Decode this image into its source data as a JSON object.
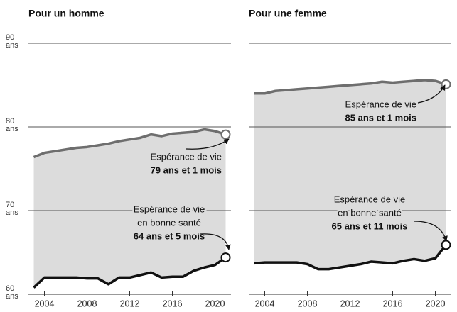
{
  "chart_data": [
    {
      "type": "line",
      "title": "Pour un homme",
      "x": [
        2003,
        2004,
        2005,
        2006,
        2007,
        2008,
        2009,
        2010,
        2011,
        2012,
        2013,
        2014,
        2015,
        2016,
        2017,
        2018,
        2019,
        2020,
        2021
      ],
      "series": [
        {
          "color": "#6e6e6e",
          "values": [
            76.4,
            76.9,
            77.1,
            77.3,
            77.5,
            77.6,
            77.8,
            78.0,
            78.3,
            78.5,
            78.7,
            79.1,
            78.9,
            79.2,
            79.3,
            79.4,
            79.7,
            79.5,
            79.1
          ]
        },
        {
          "color": "#111111",
          "values": [
            60.8,
            62.0,
            62.0,
            62.0,
            62.0,
            61.9,
            61.9,
            61.2,
            62.0,
            62.0,
            62.3,
            62.6,
            62.0,
            62.1,
            62.1,
            62.8,
            63.2,
            63.5,
            64.4
          ]
        }
      ],
      "xlim": [
        2002.5,
        2021.5
      ],
      "ylim": [
        60,
        90
      ],
      "xticks": [
        2004,
        2008,
        2012,
        2016,
        2020
      ],
      "yticks": [
        {
          "value": 60,
          "label": "60 ans"
        },
        {
          "value": 70,
          "label": "70 ans"
        },
        {
          "value": 80,
          "label": "80 ans"
        },
        {
          "value": 90,
          "label": "90 ans"
        }
      ],
      "ytick_labels": true,
      "annotations": [
        {
          "lines": [
            "Espérance de vie"
          ],
          "value_label": "79 ans et 1 mois"
        },
        {
          "lines": [
            "Espérance de vie",
            "en bonne santé"
          ],
          "value_label": "64 ans et 5 mois"
        }
      ]
    },
    {
      "type": "line",
      "title": "Pour une femme",
      "x": [
        2003,
        2004,
        2005,
        2006,
        2007,
        2008,
        2009,
        2010,
        2011,
        2012,
        2013,
        2014,
        2015,
        2016,
        2017,
        2018,
        2019,
        2020,
        2021
      ],
      "series": [
        {
          "color": "#6e6e6e",
          "values": [
            84.0,
            84.0,
            84.3,
            84.4,
            84.5,
            84.6,
            84.7,
            84.8,
            84.9,
            85.0,
            85.1,
            85.2,
            85.4,
            85.3,
            85.4,
            85.5,
            85.6,
            85.5,
            85.1
          ]
        },
        {
          "color": "#111111",
          "values": [
            63.7,
            63.8,
            63.8,
            63.8,
            63.8,
            63.6,
            63.0,
            63.0,
            63.2,
            63.4,
            63.6,
            63.9,
            63.8,
            63.7,
            64.0,
            64.2,
            64.0,
            64.3,
            65.9
          ]
        }
      ],
      "xlim": [
        2002.5,
        2021.5
      ],
      "ylim": [
        60,
        90
      ],
      "xticks": [
        2004,
        2008,
        2012,
        2016,
        2020
      ],
      "yticks": [
        {
          "value": 60,
          "label": "60 ans"
        },
        {
          "value": 70,
          "label": "70 ans"
        },
        {
          "value": 80,
          "label": "80 ans"
        },
        {
          "value": 90,
          "label": "90 ans"
        }
      ],
      "ytick_labels": false,
      "annotations": [
        {
          "lines": [
            "Espérance de vie"
          ],
          "value_label": "85 ans et 1 mois"
        },
        {
          "lines": [
            "Espérance de vie",
            "en bonne santé"
          ],
          "value_label": "65 ans et 11 mois"
        }
      ]
    }
  ]
}
